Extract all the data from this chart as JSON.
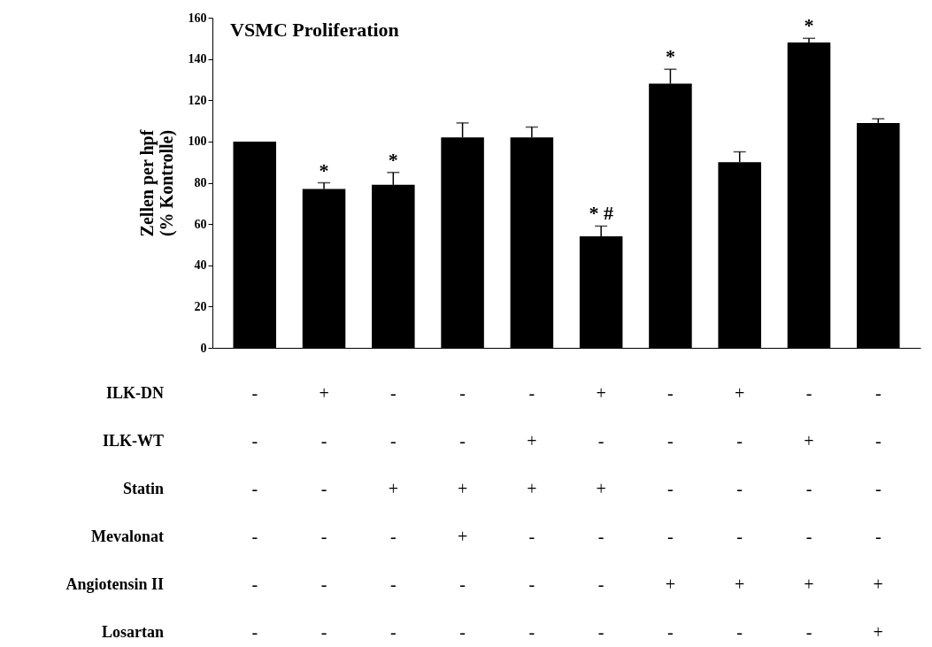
{
  "chart_data": {
    "type": "bar",
    "title": "VSMC Proliferation",
    "ylabel": "Zellen per hpf\n(% Kontrolle)",
    "categories": [
      null,
      null,
      null,
      null,
      null,
      null,
      null,
      null,
      null,
      null
    ],
    "values": [
      100,
      77,
      79,
      102,
      102,
      54,
      128,
      90,
      148,
      109
    ],
    "errors": [
      null,
      [
        77,
        80
      ],
      [
        79,
        85
      ],
      [
        102,
        109
      ],
      [
        102,
        107
      ],
      [
        54,
        59
      ],
      [
        128,
        135
      ],
      [
        90,
        95
      ],
      [
        148,
        150
      ],
      [
        109,
        111
      ]
    ],
    "value_labels": [
      null,
      "*",
      "*",
      null,
      null,
      "*  #",
      "*",
      null,
      "*",
      null
    ],
    "color": "#000000",
    "ylim": [
      0,
      160
    ],
    "yticks": [
      0,
      20,
      40,
      60,
      80,
      100,
      120,
      140,
      160
    ],
    "grid": false,
    "annotations": [
      "ILK-DN",
      "- + - - - + - + - -",
      "ILK-WT",
      "- - - - + - - - + -",
      "Statin",
      "- - + + + + - - - -",
      "Mevalonat",
      "- - - + - - - - - -",
      "Angiotensin II",
      "- - - - - - + + + +",
      "Losartan",
      "- - - - - - - - - +"
    ]
  }
}
